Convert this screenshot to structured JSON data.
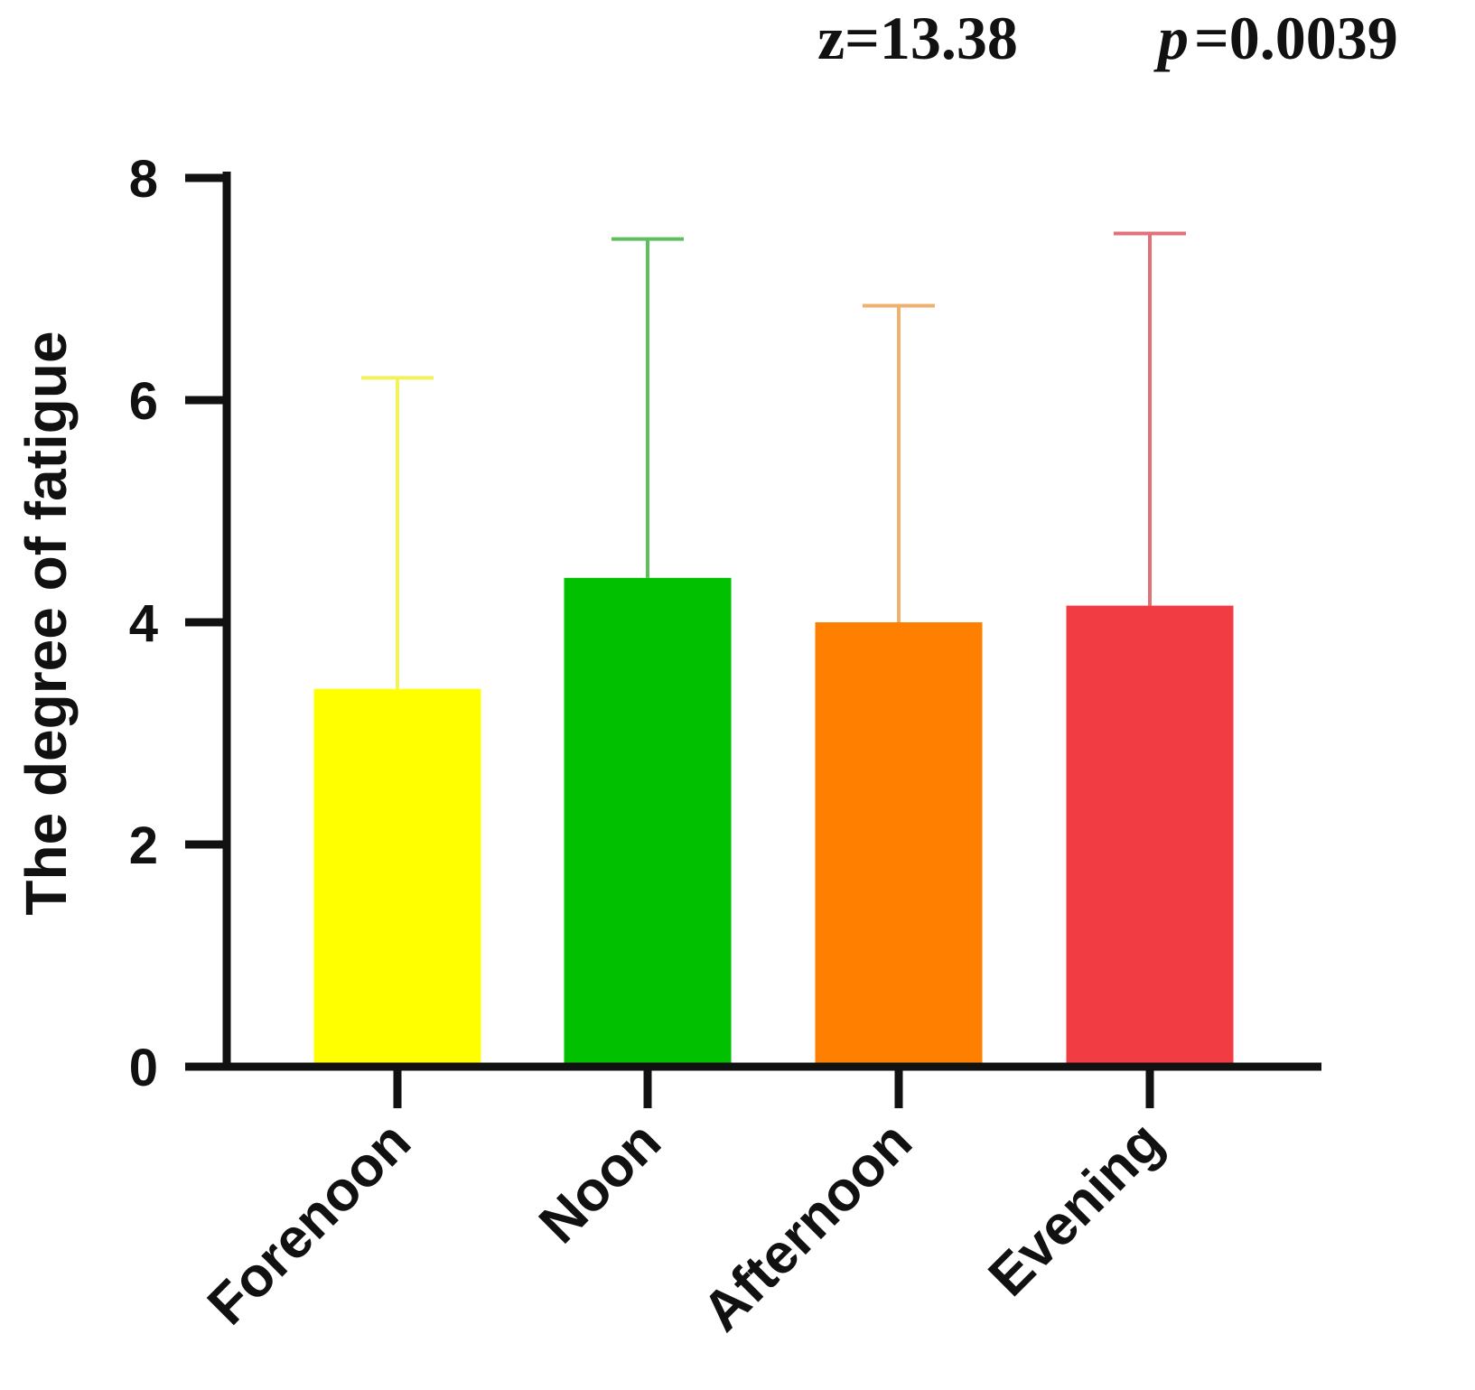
{
  "annotation": {
    "z_text": "z=13.38",
    "p_symbol": "p",
    "p_value_text": "=0.0039"
  },
  "chart_data": {
    "type": "bar",
    "title": "",
    "xlabel": "",
    "ylabel": "The degree of fatigue",
    "ylim": [
      0,
      8
    ],
    "yticks": [
      0,
      2,
      4,
      6,
      8
    ],
    "grid": false,
    "legend": "none",
    "categories": [
      "Forenoon",
      "Noon",
      "Afternoon",
      "Evening"
    ],
    "values": [
      3.4,
      4.4,
      4.0,
      4.15
    ],
    "error_upper": [
      6.2,
      7.45,
      6.85,
      7.5
    ],
    "colors": [
      "#FFFF00",
      "#00C000",
      "#FF8000",
      "#F23C43"
    ],
    "error_colors": [
      "#F2F25A",
      "#5EBF5E",
      "#F0B070",
      "#E0707A"
    ]
  }
}
